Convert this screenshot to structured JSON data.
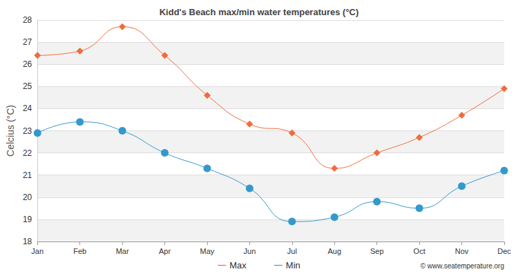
{
  "chart_data": {
    "type": "line",
    "title": "Kidd's Beach max/min water temperatures (°C)",
    "y_label": "Celcius (°C)",
    "categories": [
      "Jan",
      "Feb",
      "Mar",
      "Apr",
      "May",
      "Jun",
      "Jul",
      "Aug",
      "Sep",
      "Oct",
      "Nov",
      "Dec"
    ],
    "series": [
      {
        "name": "Max",
        "color": "#f26b3a",
        "marker": "diamond",
        "line_style": "smooth",
        "values": [
          26.4,
          26.6,
          27.7,
          26.4,
          24.6,
          23.3,
          22.9,
          21.3,
          22.0,
          22.7,
          23.7,
          24.9
        ]
      },
      {
        "name": "Min",
        "color": "#3399cc",
        "marker": "circle",
        "line_style": "smooth",
        "values": [
          22.9,
          23.4,
          23.0,
          22.0,
          21.3,
          20.4,
          18.9,
          19.1,
          19.8,
          19.5,
          20.5,
          21.2
        ]
      }
    ],
    "ylim": [
      18,
      28
    ],
    "yticks": [
      18,
      19,
      20,
      21,
      22,
      23,
      24,
      25,
      26,
      27,
      28
    ],
    "grid": true,
    "legend": "bottom",
    "annotations": [
      "© www.seatemperature.org"
    ]
  }
}
